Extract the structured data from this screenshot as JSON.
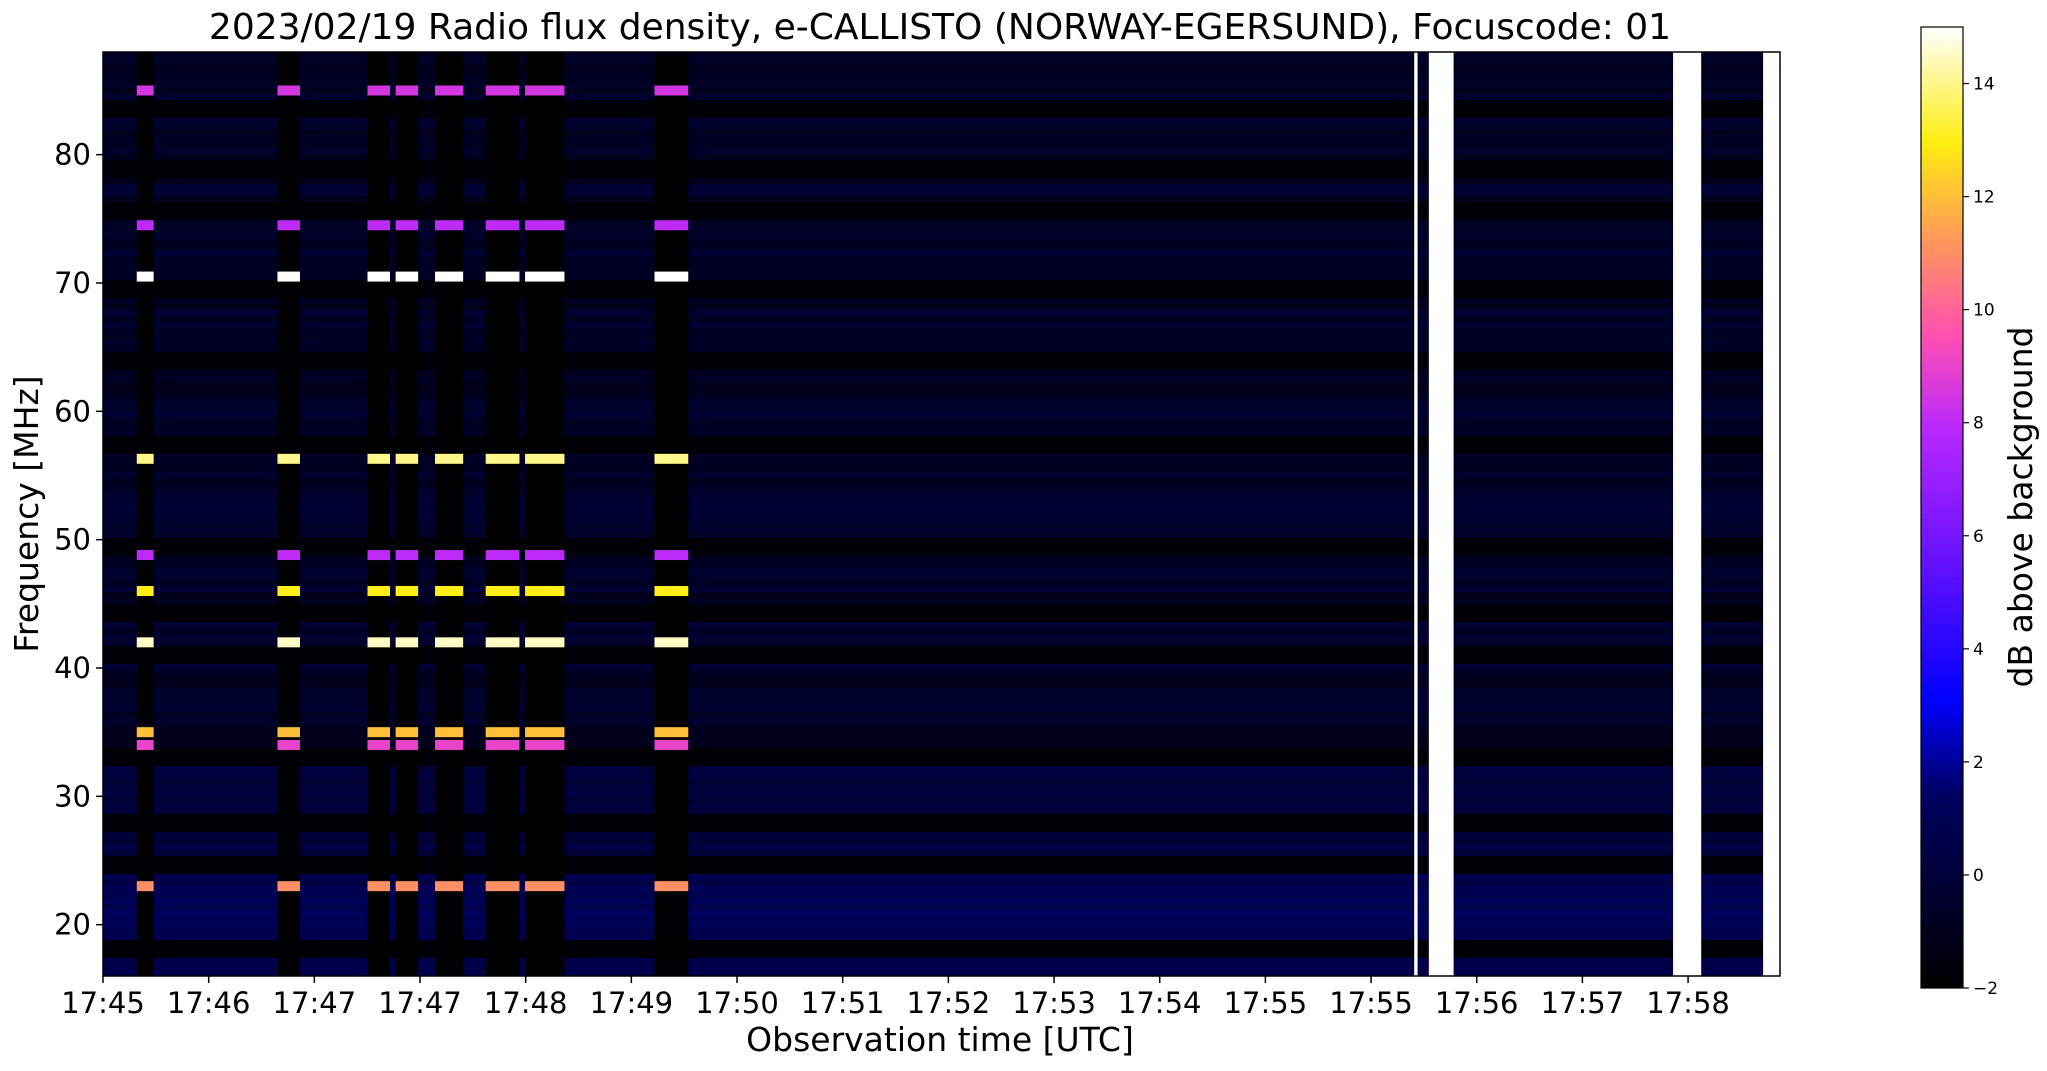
{
  "chart_data": {
    "type": "heatmap",
    "title": "2023/02/19  Radio flux density, e-CALLISTO (NORWAY-EGERSUND), Focuscode: 01",
    "xlabel": "Observation time [UTC]",
    "ylabel": "Frequency [MHz]",
    "colorbar_label": "dB above background",
    "x_tick_labels": [
      "17:45",
      "17:46",
      "17:47",
      "17:47",
      "17:48",
      "17:49",
      "17:50",
      "17:51",
      "17:52",
      "17:53",
      "17:54",
      "17:55",
      "17:55",
      "17:56",
      "17:57",
      "17:58"
    ],
    "x_range_minutes": [
      0,
      14.9
    ],
    "y_ticks": [
      20,
      30,
      40,
      50,
      60,
      70,
      80
    ],
    "ylim": [
      16,
      88
    ],
    "colorbar_ticks": [
      -2,
      0,
      2,
      4,
      6,
      8,
      10,
      12,
      14
    ],
    "clim": [
      -2,
      15
    ],
    "colormap": "gnuplot2",
    "colormap_stops": [
      {
        "v": 0.0,
        "c": "#000000"
      },
      {
        "v": 0.2,
        "c": "#000060"
      },
      {
        "v": 0.3,
        "c": "#0000ff"
      },
      {
        "v": 0.45,
        "c": "#6a12ff"
      },
      {
        "v": 0.58,
        "c": "#b828ff"
      },
      {
        "v": 0.68,
        "c": "#ff50b0"
      },
      {
        "v": 0.78,
        "c": "#ff9a58"
      },
      {
        "v": 0.88,
        "c": "#ffee10"
      },
      {
        "v": 1.0,
        "c": "#ffffff"
      }
    ],
    "background_level_db": -0.6,
    "calibration_gaps": [
      {
        "t_start": 0.3,
        "t_end": 0.45
      },
      {
        "t_start": 1.55,
        "t_end": 1.75
      },
      {
        "t_start": 2.35,
        "t_end": 2.55
      },
      {
        "t_start": 2.6,
        "t_end": 2.8
      },
      {
        "t_start": 2.95,
        "t_end": 3.2
      },
      {
        "t_start": 3.4,
        "t_end": 3.7
      },
      {
        "t_start": 3.75,
        "t_end": 4.1
      },
      {
        "t_start": 4.9,
        "t_end": 5.2
      }
    ],
    "saturated_bands": [
      {
        "t_start": 11.65,
        "t_end": 11.68
      },
      {
        "t_start": 11.78,
        "t_end": 12.0
      },
      {
        "t_start": 13.95,
        "t_end": 14.2
      },
      {
        "t_start": 14.75,
        "t_end": 14.9
      }
    ],
    "emission_lines_mhz": [
      {
        "f": 85.0,
        "db": 8.5
      },
      {
        "f": 74.5,
        "db": 8.0
      },
      {
        "f": 70.5,
        "db": 15.0
      },
      {
        "f": 56.3,
        "db": 14.0
      },
      {
        "f": 48.8,
        "db": 8.0
      },
      {
        "f": 46.0,
        "db": 13.0
      },
      {
        "f": 42.0,
        "db": 14.5
      },
      {
        "f": 35.0,
        "db": 12.0
      },
      {
        "f": 34.0,
        "db": 9.0
      },
      {
        "f": 23.0,
        "db": 11.0
      }
    ],
    "dark_bands_mhz": [
      83.5,
      79.0,
      75.8,
      69.5,
      64.0,
      57.5,
      49.5,
      44.5,
      41.0,
      33.0,
      28.0,
      24.5,
      18.0
    ]
  }
}
